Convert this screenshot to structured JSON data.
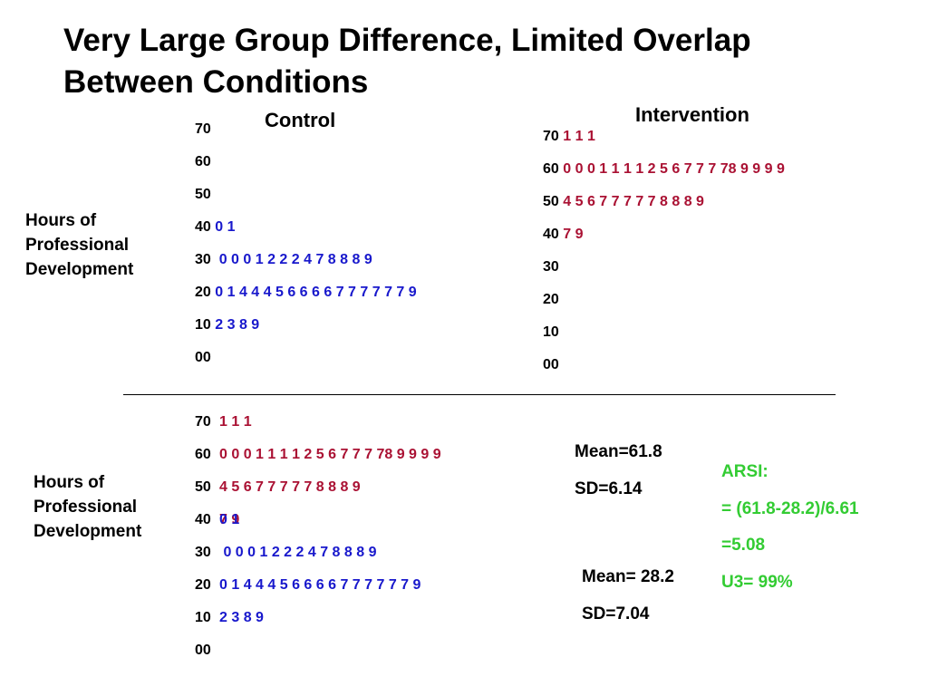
{
  "title_line1": "Very Large Group Difference, Limited Overlap",
  "title_line2": "Between Conditions",
  "control_heading": "Control",
  "intervention_heading": "Intervention",
  "ylabel": {
    "line1": "Hours of",
    "line2": "Professional",
    "line3": "Development"
  },
  "colors": {
    "control": "#1818cc",
    "intervention": "#aa1133",
    "arsi": "#33cc33"
  },
  "control_plot": [
    {
      "stem": "70",
      "leaves": ""
    },
    {
      "stem": "60",
      "leaves": ""
    },
    {
      "stem": "50",
      "leaves": ""
    },
    {
      "stem": "40",
      "leaves": "0 1"
    },
    {
      "stem": "30",
      "leaves": " 0 0 0 1 2 2 2 4 7 8 8 8 9"
    },
    {
      "stem": "20",
      "leaves": "0 1 4 4 4 5 6 6 6 6 7 7 7 7 7 7 9"
    },
    {
      "stem": "10",
      "leaves": "2 3 8 9"
    },
    {
      "stem": "00",
      "leaves": ""
    }
  ],
  "intervention_plot": [
    {
      "stem": "70",
      "leaves": "1 1 1"
    },
    {
      "stem": "60",
      "leaves": "0 0 0 1 1 1 1 2 5 6 7 7 7 78 9 9 9 9"
    },
    {
      "stem": "50",
      "leaves": "4 5 6 7 7 7 7 7 8 8 8 9"
    },
    {
      "stem": "40",
      "leaves": "7 9"
    },
    {
      "stem": "30",
      "leaves": ""
    },
    {
      "stem": "20",
      "leaves": ""
    },
    {
      "stem": "10",
      "leaves": ""
    },
    {
      "stem": "00",
      "leaves": ""
    }
  ],
  "combined_plot": [
    {
      "stem": "70",
      "red": "1 1 1",
      "blue": ""
    },
    {
      "stem": "60",
      "red": "0 0 0 1 1 1 1 2 5 6 7 7 7 78 9 9 9 9",
      "blue": ""
    },
    {
      "stem": "50",
      "red": "4 5 6 7 7 7 7 7 8 8 8 9",
      "blue": ""
    },
    {
      "stem": "40",
      "red": "7 9",
      "blue": "0 1"
    },
    {
      "stem": "30",
      "red": "",
      "blue": " 0 0 0 1 2 2 2 4 7 8 8 8 9"
    },
    {
      "stem": "20",
      "red": "",
      "blue": "0 1 4 4 4 5 6 6 6 6 7 7 7 7 7 7 9"
    },
    {
      "stem": "10",
      "red": "",
      "blue": "2 3 8 9"
    },
    {
      "stem": "00",
      "red": "",
      "blue": ""
    }
  ],
  "intervention_stats": {
    "mean": "Mean=61.8",
    "sd": "SD=6.14"
  },
  "control_stats": {
    "mean": "Mean= 28.2",
    "sd": "SD=7.04"
  },
  "arsi": {
    "label": "ARSI:",
    "formula": "= (61.8-28.2)/6.61",
    "value": "=5.08",
    "u3": "U3= 99%"
  }
}
